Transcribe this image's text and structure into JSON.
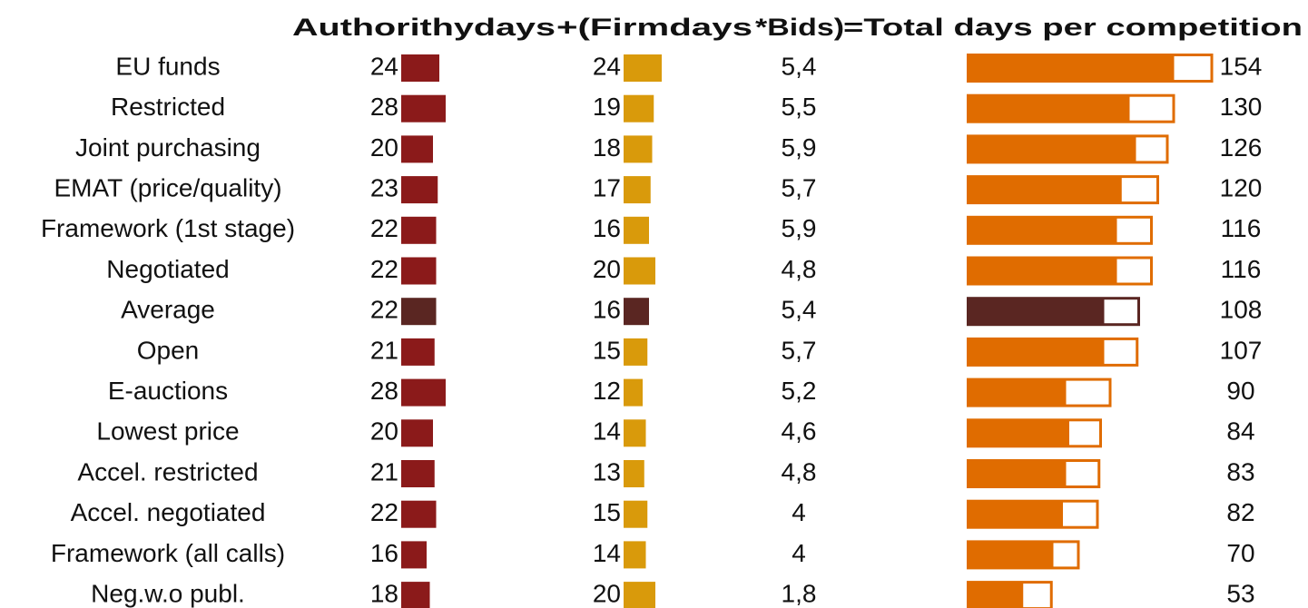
{
  "chart_data": {
    "type": "bar",
    "header": [
      "Authorithydays",
      "+(Firmdays",
      "*Bids)",
      "=Total days per competition"
    ],
    "categories": [
      "EU funds",
      "Restricted",
      "Joint purchasing",
      "EMAT (price/quality)",
      "Framework (1st stage)",
      "Negotiated",
      "Average",
      "Open",
      "E-auctions",
      "Lowest price",
      "Accel. restricted",
      "Accel. negotiated",
      "Framework (all calls)",
      "Neg.w.o publ."
    ],
    "authority": {
      "values": [
        24,
        28,
        20,
        23,
        22,
        22,
        22,
        21,
        28,
        20,
        21,
        22,
        16,
        18
      ],
      "colors": [
        "#8b1a1a",
        "#8b1a1a",
        "#8b1a1a",
        "#8b1a1a",
        "#8b1a1a",
        "#8b1a1a",
        "#5a2622",
        "#8b1a1a",
        "#8b1a1a",
        "#8b1a1a",
        "#8b1a1a",
        "#8b1a1a",
        "#8b1a1a",
        "#8b1a1a"
      ]
    },
    "firm": {
      "values": [
        24,
        19,
        18,
        17,
        16,
        20,
        16,
        15,
        12,
        14,
        13,
        15,
        14,
        20
      ],
      "colors": [
        "#d99a0b",
        "#d99a0b",
        "#d99a0b",
        "#d99a0b",
        "#d99a0b",
        "#d99a0b",
        "#5a2622",
        "#d99a0b",
        "#d99a0b",
        "#d99a0b",
        "#d99a0b",
        "#d99a0b",
        "#d99a0b",
        "#d99a0b"
      ]
    },
    "bids": {
      "values": [
        5.4,
        5.5,
        5.9,
        5.7,
        5.9,
        4.8,
        5.4,
        5.7,
        5.2,
        4.6,
        4.8,
        4,
        4,
        1.8
      ],
      "value_labels": [
        "5,4",
        "5,5",
        "5,9",
        "5,7",
        "5,9",
        "4,8",
        "5,4",
        "5,7",
        "5,2",
        "4,6",
        "4,8",
        "4",
        "4",
        "1,8"
      ]
    },
    "total": {
      "values": [
        154,
        130,
        126,
        120,
        116,
        116,
        108,
        107,
        90,
        84,
        83,
        82,
        70,
        53
      ],
      "colors": [
        "#e06c00",
        "#e06c00",
        "#e06c00",
        "#e06c00",
        "#e06c00",
        "#e06c00",
        "#5a2622",
        "#e06c00",
        "#e06c00",
        "#e06c00",
        "#e06c00",
        "#e06c00",
        "#e06c00",
        "#e06c00"
      ]
    }
  }
}
